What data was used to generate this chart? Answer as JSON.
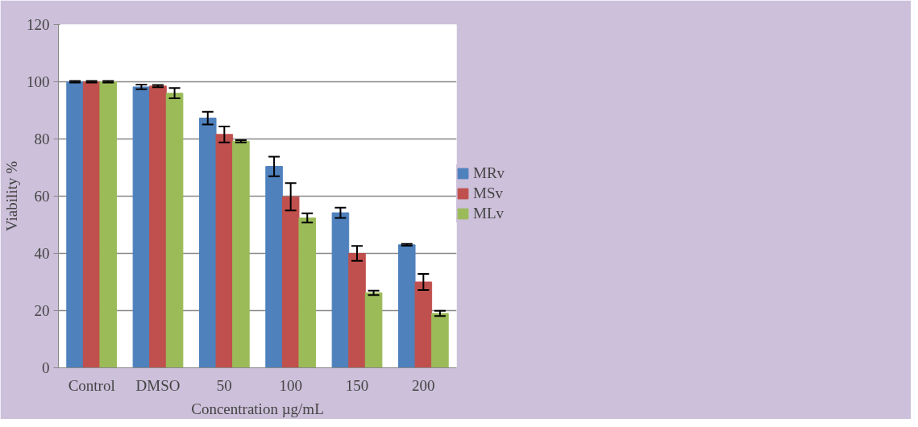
{
  "chart_data": {
    "type": "bar",
    "xlabel": "Concentration µg/mL",
    "ylabel": "Viability %",
    "categories": [
      "Control",
      "DMSO",
      "50",
      "100",
      "150",
      "200"
    ],
    "series": [
      {
        "name": "MRv",
        "color": "#4f81bd",
        "values": [
          100,
          98.2,
          87.3,
          70.4,
          54.2,
          43
        ],
        "errors": [
          0.3,
          0.8,
          2.2,
          3.4,
          1.8,
          0.3
        ]
      },
      {
        "name": "MSv",
        "color": "#c0504d",
        "values": [
          100,
          98.5,
          81.6,
          59.8,
          40,
          30
        ],
        "errors": [
          0.3,
          0.4,
          2.8,
          4.8,
          2.6,
          2.8
        ]
      },
      {
        "name": "MLv",
        "color": "#9bbb59",
        "values": [
          100,
          96,
          79.2,
          52.4,
          26.2,
          19
        ],
        "errors": [
          0.3,
          1.8,
          0.4,
          1.6,
          0.8,
          0.9
        ]
      }
    ],
    "ylim": [
      0,
      120
    ],
    "yticks": [
      0,
      20,
      40,
      60,
      80,
      100,
      120
    ],
    "grid": "y",
    "legend": "right"
  }
}
